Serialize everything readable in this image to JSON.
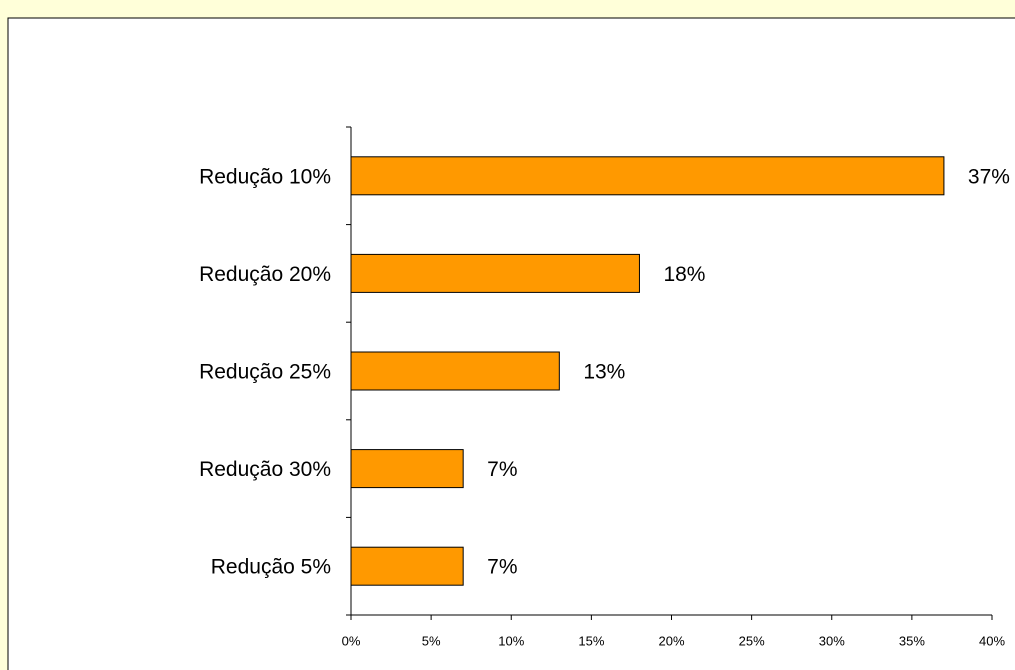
{
  "chart_data": {
    "type": "hbar",
    "categories": [
      "Redução 10%",
      "Redução 20%",
      "Redução 25%",
      "Redução 30%",
      "Redução 5%"
    ],
    "values": [
      37,
      18,
      13,
      7,
      7
    ],
    "value_labels": [
      "37%",
      "18%",
      "13%",
      "7%",
      "7%"
    ],
    "color": "#ff9900",
    "xlim": [
      0,
      40
    ],
    "xticks": [
      {
        "value": 0,
        "label": "0%"
      },
      {
        "value": 5,
        "label": "5%"
      },
      {
        "value": 10,
        "label": "10%"
      },
      {
        "value": 15,
        "label": "15%"
      },
      {
        "value": 20,
        "label": "20%"
      },
      {
        "value": 25,
        "label": "25%"
      },
      {
        "value": 30,
        "label": "30%"
      },
      {
        "value": 35,
        "label": "35%"
      },
      {
        "value": 40,
        "label": "40%"
      }
    ]
  }
}
